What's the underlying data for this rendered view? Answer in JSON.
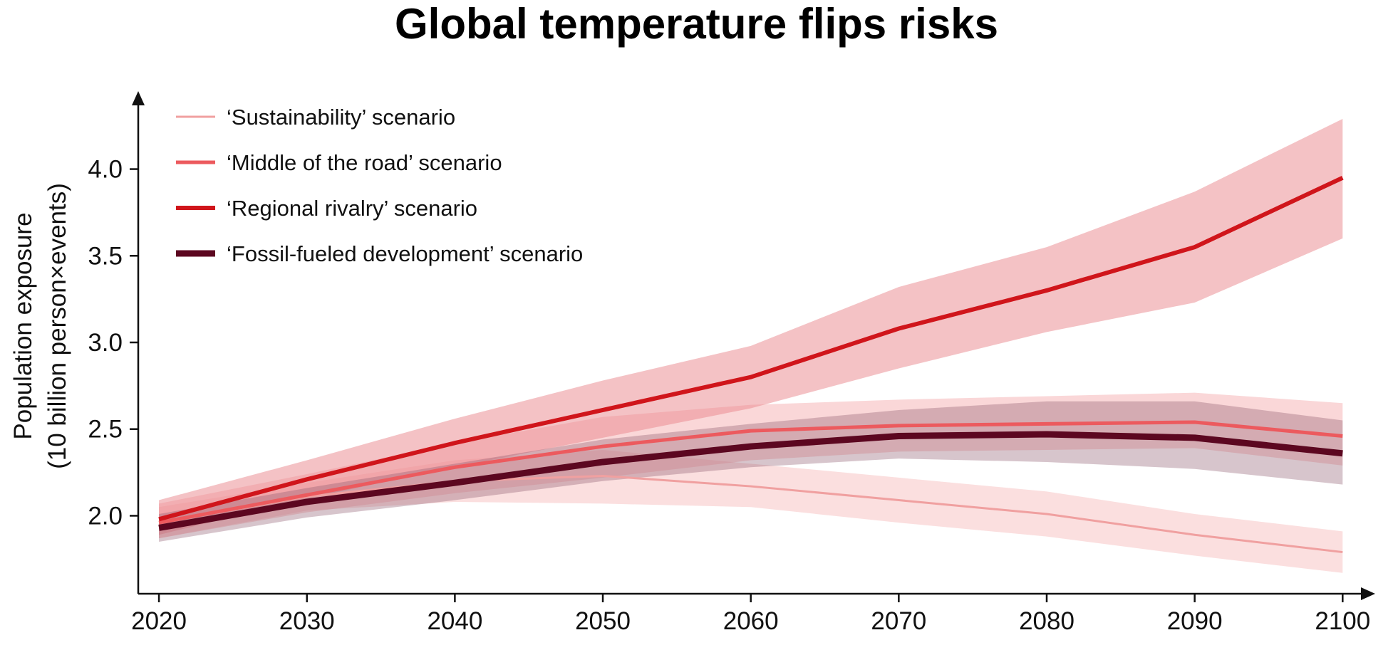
{
  "chart_data": {
    "type": "line",
    "title": "Global temperature flips risks",
    "xlabel": "",
    "ylabel": [
      "Population exposure",
      "(10 billion person×events)"
    ],
    "x": [
      2020,
      2030,
      2040,
      2050,
      2060,
      2070,
      2080,
      2090,
      2100
    ],
    "xlim": [
      2018.6,
      2102.2
    ],
    "ylim": [
      1.55,
      4.45
    ],
    "yticks": [
      2.0,
      2.5,
      3.0,
      3.5,
      4.0
    ],
    "ytick_labels": [
      "2.0",
      "2.5",
      "3.0",
      "3.5",
      "4.0"
    ],
    "xtick_labels": [
      "2020",
      "2030",
      "2040",
      "2050",
      "2060",
      "2070",
      "2080",
      "2090",
      "2100"
    ],
    "grid": false,
    "legend_position": "top-left",
    "series": [
      {
        "name": "‘Sustainability’ scenario",
        "color": "#f0a0a0",
        "band_color": "#f7b8b8",
        "band_opacity": 0.45,
        "line_weight": "thin",
        "values": [
          1.96,
          2.11,
          2.2,
          2.23,
          2.17,
          2.09,
          2.01,
          1.89,
          1.79
        ],
        "lower": [
          1.87,
          2.03,
          2.08,
          2.07,
          2.05,
          1.96,
          1.88,
          1.77,
          1.67
        ],
        "upper": [
          2.05,
          2.19,
          2.32,
          2.38,
          2.3,
          2.22,
          2.14,
          2.01,
          1.91
        ]
      },
      {
        "name": "‘Middle of the road’ scenario",
        "color": "#ec5a5e",
        "band_color": "#f4a6a8",
        "band_opacity": 0.45,
        "line_weight": "medium",
        "values": [
          1.96,
          2.12,
          2.28,
          2.4,
          2.49,
          2.52,
          2.53,
          2.54,
          2.46
        ],
        "lower": [
          1.87,
          2.02,
          2.13,
          2.22,
          2.32,
          2.37,
          2.38,
          2.39,
          2.29
        ],
        "upper": [
          2.07,
          2.24,
          2.42,
          2.57,
          2.64,
          2.67,
          2.69,
          2.71,
          2.65
        ]
      },
      {
        "name": "‘Regional rivalry’ scenario",
        "color": "#d0151b",
        "band_color": "#e9868b",
        "band_opacity": 0.5,
        "line_weight": "thick",
        "values": [
          1.98,
          2.21,
          2.42,
          2.61,
          2.8,
          3.08,
          3.3,
          3.55,
          3.95
        ],
        "lower": [
          1.89,
          2.1,
          2.28,
          2.45,
          2.62,
          2.85,
          3.06,
          3.23,
          3.6
        ],
        "upper": [
          2.09,
          2.32,
          2.56,
          2.78,
          2.98,
          3.32,
          3.55,
          3.87,
          4.29
        ]
      },
      {
        "name": "‘Fossil-fueled development’ scenario",
        "color": "#5c0720",
        "band_color": "#8c5a6e",
        "band_opacity": 0.35,
        "line_weight": "heaviest",
        "values": [
          1.93,
          2.08,
          2.19,
          2.31,
          2.4,
          2.46,
          2.47,
          2.45,
          2.36
        ],
        "lower": [
          1.85,
          1.99,
          2.09,
          2.2,
          2.28,
          2.33,
          2.31,
          2.27,
          2.18
        ],
        "upper": [
          2.01,
          2.16,
          2.3,
          2.44,
          2.53,
          2.61,
          2.66,
          2.66,
          2.55
        ]
      }
    ]
  }
}
